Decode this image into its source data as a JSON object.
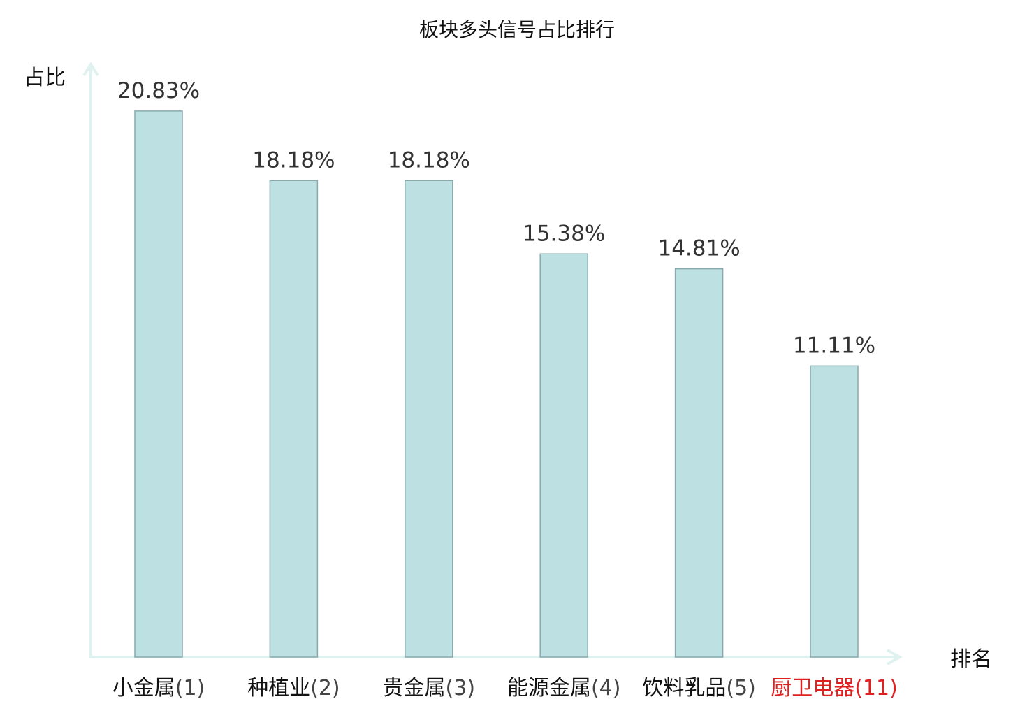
{
  "chart_data": {
    "type": "bar",
    "title": "板块多头信号占比排行",
    "ylabel": "占比",
    "xlabel": "排名",
    "categories": [
      "小金属",
      "种植业",
      "贵金属",
      "能源金属",
      "饮料乳品",
      "厨卫电器"
    ],
    "ranks": [
      "(1)",
      "(2)",
      "(3)",
      "(4)",
      "(5)",
      "(11)"
    ],
    "highlight": [
      false,
      false,
      false,
      false,
      false,
      true
    ],
    "values": [
      20.83,
      18.18,
      18.18,
      15.38,
      14.81,
      11.11
    ],
    "value_labels": [
      "20.83%",
      "18.18%",
      "18.18%",
      "15.38%",
      "14.81%",
      "11.11%"
    ],
    "ylim": [
      0,
      24
    ],
    "grid": false,
    "colors": {
      "bar_fill": "#bde0e3",
      "bar_stroke": "#8aa9ab",
      "axis": "#dff2ef",
      "text": "#111111",
      "value_text": "#333333",
      "highlight_text": "#e02020"
    }
  }
}
